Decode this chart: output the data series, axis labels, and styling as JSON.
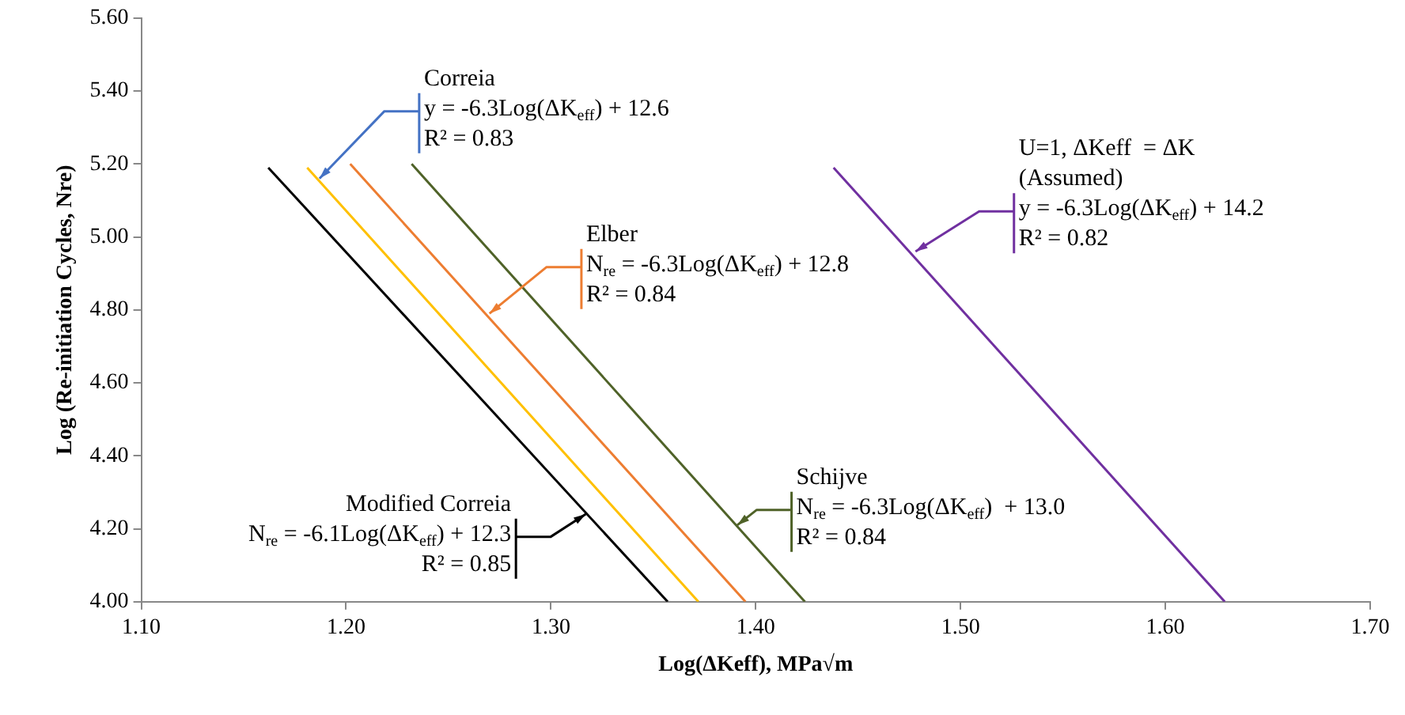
{
  "chart_data": {
    "type": "line",
    "xlabel": "Log(ΔKeff), MPa√m",
    "ylabel": "Log (Re-initiation Cycles, Nre)",
    "xlim": [
      1.1,
      1.7
    ],
    "xticks": [
      {
        "value": 1.1,
        "label": "1.10"
      },
      {
        "value": 1.2,
        "label": "1.20"
      },
      {
        "value": 1.3,
        "label": "1.30"
      },
      {
        "value": 1.4,
        "label": "1.40"
      },
      {
        "value": 1.5,
        "label": "1.50"
      },
      {
        "value": 1.6,
        "label": "1.60"
      },
      {
        "value": 1.7,
        "label": "1.70"
      }
    ],
    "ylim": [
      4.0,
      5.6
    ],
    "yticks": [
      {
        "value": 4.0,
        "label": "4.00"
      },
      {
        "value": 4.2,
        "label": "4.20"
      },
      {
        "value": 4.4,
        "label": "4.40"
      },
      {
        "value": 4.6,
        "label": "4.60"
      },
      {
        "value": 4.8,
        "label": "4.80"
      },
      {
        "value": 5.0,
        "label": "5.00"
      },
      {
        "value": 5.2,
        "label": "5.20"
      },
      {
        "value": 5.4,
        "label": "5.40"
      },
      {
        "value": 5.6,
        "label": "5.60"
      }
    ],
    "grid": false,
    "legend": false,
    "marker": "none",
    "line_style": "solid",
    "series": [
      {
        "color": "#000000",
        "x": [
          1.162,
          1.357
        ],
        "values": [
          5.19,
          4.0
        ]
      },
      {
        "color": "#ffc000",
        "x": [
          1.181,
          1.372
        ],
        "values": [
          5.19,
          4.0
        ]
      },
      {
        "color": "#ed7d31",
        "x": [
          1.202,
          1.395
        ],
        "values": [
          5.2,
          4.0
        ]
      },
      {
        "color": "#4f6228",
        "x": [
          1.232,
          1.424
        ],
        "values": [
          5.2,
          4.0
        ]
      },
      {
        "color": "#7030a0",
        "x": [
          1.438,
          1.629
        ],
        "values": [
          5.19,
          4.0
        ]
      }
    ],
    "annotations": [
      "Correia",
      {
        "text": "y = -6.3Log(ΔK$_{eff}$) + 12.6",
        "x": 1.187,
        "y": 5.16
      },
      "R² = 0.83",
      "Elber",
      {
        "text": "N$_{re}$ = -6.3Log(ΔK$_{eff}$) + 12.8",
        "x": 1.27,
        "y": 4.79
      },
      "R² = 0.84",
      "Schijve",
      {
        "text": "N$_{re}$ = -6.3Log(ΔK$_{eff}$)  + 13.0",
        "x": 1.391,
        "y": 4.21
      },
      "R² = 0.84",
      "Modified Correia",
      {
        "text": "N$_{re}$ = -6.1Log(ΔK$_{eff}$) + 12.3",
        "x": 1.317,
        "y": 4.24
      },
      "R² = 0.85",
      "U=1, ΔKeff  = ΔK",
      "(Assumed)",
      {
        "text": "y = -6.3Log(ΔK$_{eff}$) + 14.2",
        "x": 1.478,
        "y": 4.96
      },
      "R² = 0.82"
    ]
  }
}
